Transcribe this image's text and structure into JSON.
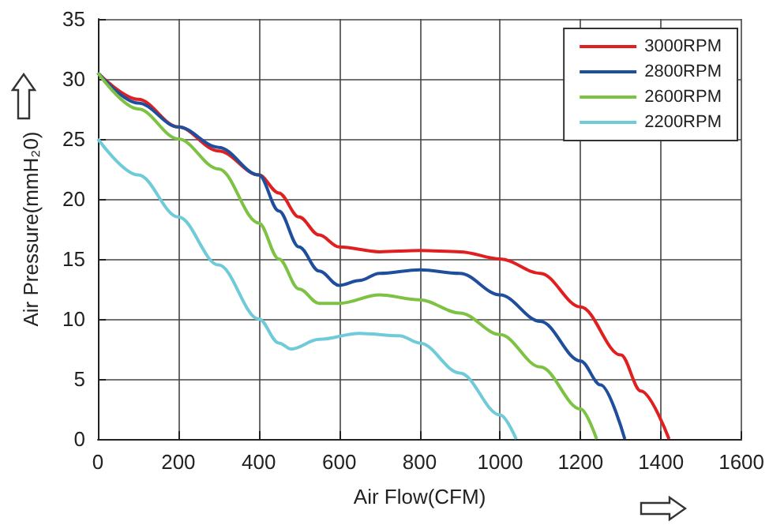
{
  "chart_data": {
    "type": "line",
    "xlabel": "Air Flow(CFM)",
    "ylabel": "Air Pressure(mmH₂0)",
    "xlim": [
      0,
      1600
    ],
    "xticks": [
      0,
      200,
      400,
      600,
      800,
      1000,
      1200,
      1400,
      1600
    ],
    "ylim": [
      0,
      35
    ],
    "yticks": [
      0,
      5,
      10,
      15,
      20,
      25,
      30,
      35
    ],
    "grid": true,
    "legend": "top right",
    "marker": "none",
    "line_style": "solid",
    "series": [
      {
        "name": "3000RPM",
        "color": "#e02020",
        "x": [
          0,
          100,
          200,
          300,
          400,
          450,
          500,
          550,
          600,
          700,
          800,
          900,
          1000,
          1100,
          1200,
          1300,
          1350,
          1420
        ],
        "values": [
          30.5,
          28.3,
          26,
          24,
          22,
          20.5,
          18.5,
          17,
          16,
          15.6,
          15.7,
          15.6,
          15,
          13.8,
          11,
          7,
          4,
          0
        ]
      },
      {
        "name": "2800RPM",
        "color": "#1f4e9c",
        "x": [
          0,
          100,
          200,
          300,
          400,
          450,
          500,
          550,
          600,
          650,
          700,
          800,
          900,
          1000,
          1100,
          1200,
          1250,
          1310
        ],
        "values": [
          30.5,
          28,
          26,
          24.3,
          22,
          19,
          16,
          14,
          12.8,
          13.2,
          13.8,
          14.1,
          13.8,
          12,
          9.8,
          6.5,
          4.5,
          0
        ]
      },
      {
        "name": "2600RPM",
        "color": "#7dc242",
        "x": [
          0,
          100,
          200,
          300,
          400,
          450,
          500,
          550,
          600,
          700,
          800,
          900,
          1000,
          1100,
          1200,
          1240
        ],
        "values": [
          30.5,
          27.5,
          25,
          22.5,
          18,
          15,
          12.5,
          11.3,
          11.3,
          12,
          11.6,
          10.5,
          8.7,
          6,
          2.5,
          0
        ]
      },
      {
        "name": "2200RPM",
        "color": "#6fcbd8",
        "x": [
          0,
          100,
          200,
          300,
          400,
          450,
          480,
          550,
          650,
          750,
          800,
          900,
          1000,
          1040
        ],
        "values": [
          25,
          22,
          18.5,
          14.5,
          10,
          8,
          7.5,
          8.3,
          8.8,
          8.6,
          8,
          5.5,
          2,
          0
        ]
      }
    ]
  }
}
